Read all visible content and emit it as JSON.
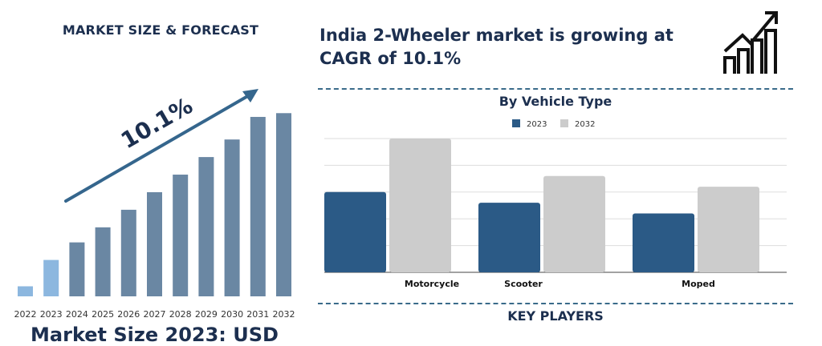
{
  "left_title": "MARKET SIZE & FORECAST",
  "headline": "India 2-Wheeler market is growing at CAGR of 10.1%",
  "cagr_label": "10.1%",
  "bottom_title": "Market Size 2023: USD",
  "segment_title": "By Vehicle Type",
  "players_title": "KEY PLAYERS",
  "colors": {
    "navy": "#1c2f4f",
    "forecast_bar": "#6a87a3",
    "historic_bar": "#8cb7df",
    "series_2023": "#2b5a86",
    "series_2032": "#cccccc",
    "arrow": "#35668d"
  },
  "icons": [
    "growth-chart-icon",
    "trend-arrow-icon"
  ],
  "chart_data": [
    {
      "type": "bar",
      "title": "MARKET SIZE & FORECAST",
      "categories": [
        "2022",
        "2023",
        "2024",
        "2025",
        "2026",
        "2027",
        "2028",
        "2029",
        "2030",
        "2031",
        "2032"
      ],
      "values": [
        8,
        29,
        43,
        55,
        69,
        83,
        97,
        111,
        125,
        143,
        146
      ],
      "historic_categories": [
        "2022",
        "2023"
      ],
      "ylim": [
        0,
        150
      ],
      "grid": false,
      "annotation": "10.1%"
    },
    {
      "type": "bar",
      "title": "By Vehicle Type",
      "categories": [
        "Motorcycle",
        "Scooter",
        "Moped"
      ],
      "series": [
        {
          "name": "2023",
          "values": [
            3.0,
            2.6,
            2.2
          ]
        },
        {
          "name": "2032",
          "values": [
            5.0,
            3.6,
            3.2
          ]
        }
      ],
      "ylim": [
        0,
        5
      ],
      "grid": true,
      "legend_position": "top-center"
    }
  ]
}
